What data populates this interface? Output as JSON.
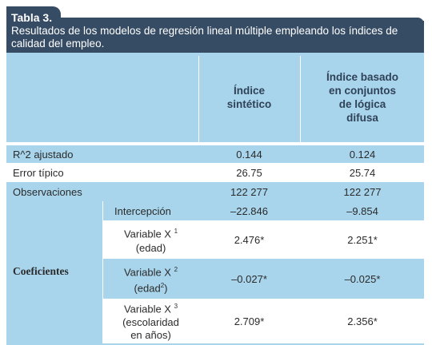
{
  "table_tag": "Tabla 3.",
  "caption": "Resultados de los modelos de regresión lineal múltiple empleando los índices de calidad del empleo.",
  "columns": {
    "sintetico": "Índice sintético",
    "difuso": "Índice basado en conjuntos de lógica difusa"
  },
  "rows": [
    {
      "label": "R^2 ajustado",
      "sintetico": "0.144",
      "difuso": "0.124"
    },
    {
      "label": "Error típico",
      "sintetico": "26.75",
      "difuso": "25.74"
    },
    {
      "label": "Observaciones",
      "sintetico": "122 277",
      "difuso": "122 277"
    }
  ],
  "coef_group_label": "Coeficientes",
  "coefficients": [
    {
      "label": "Intercepción",
      "sintetico": "–22.846",
      "difuso": "–9.854"
    },
    {
      "label_main": "Variable X",
      "sup": "1",
      "label_sub": "(edad)",
      "sintetico": "2.476*",
      "difuso": "2.251*"
    },
    {
      "label_main": "Variable X",
      "sup": "2",
      "label_sub": "(edad",
      "sub_sup": "2",
      "label_sub_end": ")",
      "sintetico": "–0.027*",
      "difuso": "–0.025*"
    },
    {
      "label_main": "Variable X",
      "sup": "3",
      "label_sub": "(escolaridad",
      "label_sub2": "en años)",
      "sintetico": "2.709*",
      "difuso": "2.356*"
    }
  ]
}
